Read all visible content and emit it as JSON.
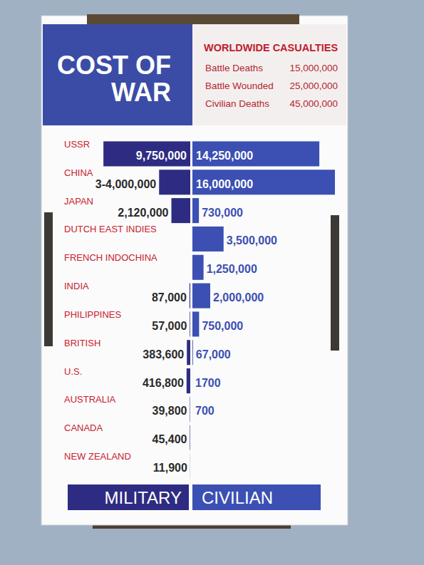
{
  "chart_data": {
    "type": "bar",
    "orientation": "horizontal",
    "title": "COST OF WAR",
    "subtitle": "WORLDWIDE CASUALTIES",
    "annotations": [
      {
        "text": "Battle Deaths",
        "value": 15000000,
        "label": "15,000,000"
      },
      {
        "text": "Battle Wounded",
        "value": 25000000,
        "label": "25,000,000"
      },
      {
        "text": "Civilian Deaths",
        "value": 45000000,
        "label": "45,000,000"
      }
    ],
    "categories": [
      "USSR",
      "CHINA",
      "JAPAN",
      "DUTCH EAST INDIES",
      "FRENCH INDOCHINA",
      "INDIA",
      "PHILIPPINES",
      "BRITISH",
      "U.S.",
      "AUSTRALIA",
      "CANADA",
      "NEW ZEALAND"
    ],
    "series": [
      {
        "name": "MILITARY",
        "color": "#2e2c82",
        "values": [
          9750000,
          3500000,
          2120000,
          null,
          null,
          87000,
          57000,
          383600,
          416800,
          39800,
          45400,
          11900
        ],
        "value_labels": [
          "9,750,000",
          "3-4,000,000",
          "2,120,000",
          null,
          null,
          "87,000",
          "57,000",
          "383,600",
          "416,800",
          "39,800",
          "45,400",
          "11,900"
        ]
      },
      {
        "name": "CIVILIAN",
        "color": "#3b50b2",
        "values": [
          14250000,
          16000000,
          730000,
          3500000,
          1250000,
          2000000,
          750000,
          67000,
          1700,
          700,
          null,
          null
        ],
        "value_labels": [
          "14,250,000",
          "16,000,000",
          "730,000",
          "3,500,000",
          "1,250,000",
          "2,000,000",
          "750,000",
          "67,000",
          "1700",
          "700",
          null,
          null
        ]
      }
    ],
    "xlim": [
      0,
      16000000
    ],
    "tick_labels": false,
    "grid": false,
    "data_labels": true,
    "legend": "bottom"
  }
}
